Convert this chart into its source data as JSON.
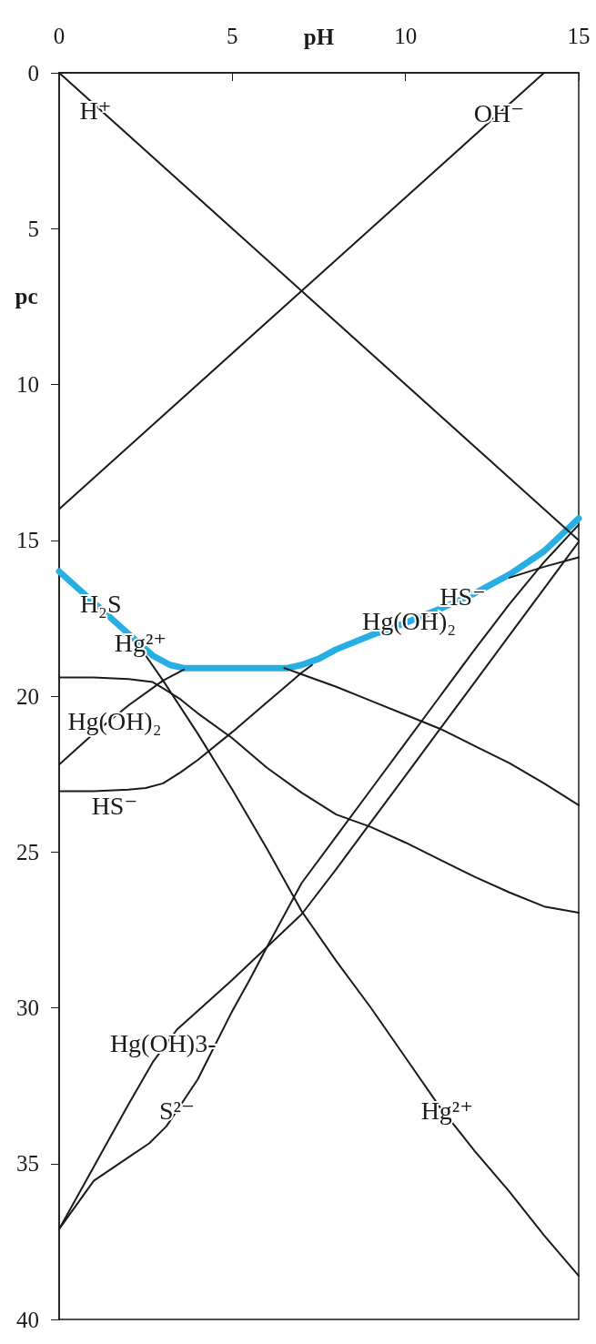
{
  "chart_data": {
    "type": "line",
    "xlabel": "pH",
    "ylabel": "pc",
    "xlim": [
      0,
      15
    ],
    "xticks": [
      0,
      5,
      10,
      15
    ],
    "ylim": [
      40,
      0
    ],
    "yticks": [
      0,
      5,
      10,
      15,
      20,
      25,
      30,
      35,
      40
    ],
    "grid": false,
    "marker": "none",
    "line_style": "solid",
    "series": [
      {
        "color": "#27aee3",
        "x": [
          0,
          1,
          2,
          2.7,
          3.2,
          3.6,
          4,
          5,
          6,
          6.6,
          7,
          7.5,
          8,
          9,
          10,
          11,
          12,
          13,
          14,
          15
        ],
        "values": [
          16.0,
          17.0,
          18.0,
          18.7,
          19.0,
          19.1,
          19.1,
          19.1,
          19.1,
          19.1,
          19.0,
          18.8,
          18.5,
          18.05,
          17.65,
          17.2,
          16.7,
          16.1,
          15.35,
          14.3
        ]
      },
      {
        "color": "#1a1a1a",
        "x": [
          0,
          15
        ],
        "values": [
          0,
          15
        ]
      },
      {
        "color": "#1a1a1a",
        "x": [
          0,
          14
        ],
        "values": [
          14,
          0
        ]
      },
      {
        "color": "#1a1a1a",
        "x": [
          2.5,
          3,
          4,
          5,
          6,
          7,
          8,
          9,
          10,
          11,
          12,
          13,
          14,
          15
        ],
        "values": [
          18.7,
          19.5,
          21.2,
          23.0,
          24.9,
          26.9,
          28.5,
          30.0,
          31.6,
          33.2,
          34.6,
          35.9,
          37.3,
          38.6
        ]
      },
      {
        "color": "#1a1a1a",
        "x": [
          0,
          1,
          2,
          2.7,
          3,
          3.5,
          4,
          5,
          6,
          7,
          8,
          9,
          10,
          11,
          12,
          13,
          14,
          15
        ],
        "values": [
          19.4,
          19.4,
          19.45,
          19.55,
          19.75,
          20.1,
          20.55,
          21.35,
          22.3,
          23.1,
          23.8,
          24.2,
          24.7,
          25.25,
          25.8,
          26.3,
          26.75,
          26.95
        ]
      },
      {
        "color": "#1a1a1a",
        "x": [
          6.5,
          7,
          8,
          9,
          10,
          11,
          12,
          13,
          14,
          15
        ],
        "values": [
          19.1,
          19.3,
          19.7,
          20.15,
          20.6,
          21.05,
          21.6,
          22.15,
          22.8,
          23.5
        ]
      },
      {
        "color": "#1a1a1a",
        "x": [
          0,
          1,
          2,
          3,
          3.6
        ],
        "values": [
          22.2,
          21.2,
          20.3,
          19.5,
          19.15
        ]
      },
      {
        "color": "#1a1a1a",
        "x": [
          0,
          1,
          2,
          2.5,
          3,
          3.5,
          4,
          5,
          6,
          7,
          7.3,
          10,
          13,
          14,
          15
        ],
        "values": [
          23.05,
          23.05,
          23.0,
          22.95,
          22.8,
          22.45,
          22.05,
          21.15,
          20.2,
          19.25,
          19.0,
          null,
          16.2,
          15.85,
          15.55
        ]
      },
      {
        "color": "#1a1a1a",
        "x": [
          0,
          1,
          2,
          2.7,
          3.4,
          4.3,
          5,
          6,
          7,
          8,
          9,
          10,
          11,
          12,
          13,
          14,
          15
        ],
        "values": [
          37.1,
          35.1,
          33.1,
          31.75,
          30.7,
          29.8,
          29.1,
          28.05,
          27.0,
          25.55,
          24.05,
          22.55,
          21.05,
          19.55,
          18.05,
          16.55,
          15.05
        ]
      },
      {
        "color": "#1a1a1a",
        "x": [
          0,
          1,
          2,
          2.6,
          3.1,
          4,
          5,
          5.5,
          6,
          7,
          8,
          9,
          10,
          11,
          12,
          13,
          14,
          15
        ],
        "values": [
          37.1,
          35.55,
          34.8,
          34.35,
          33.8,
          32.3,
          30.1,
          29.1,
          28.05,
          26.0,
          24.5,
          23.0,
          21.5,
          20.0,
          18.5,
          17.05,
          15.7,
          14.5
        ]
      }
    ],
    "annotations": [
      {
        "text": "H⁺",
        "x": 1.05,
        "y": 1.2
      },
      {
        "text": "OH⁻",
        "x": 12.7,
        "y": 1.3
      },
      {
        "text": "H₂S",
        "x": 1.2,
        "y": 17.05
      },
      {
        "text": "Hg²⁺",
        "x": 2.35,
        "y": 18.3
      },
      {
        "text": "Hg(OH)₂",
        "x": 1.6,
        "y": 20.8
      },
      {
        "text": "HS⁻",
        "x": 1.6,
        "y": 23.15
      },
      {
        "text": "Hg(OH)₂",
        "x": 10.1,
        "y": 17.6
      },
      {
        "text": "HS⁻",
        "x": 11.65,
        "y": 16.8
      },
      {
        "text": "Hg(OH)3-",
        "x": 3.0,
        "y": 31.15
      },
      {
        "text": "S²⁻",
        "x": 3.4,
        "y": 33.3
      },
      {
        "text": "Hg²⁺",
        "x": 11.2,
        "y": 33.3
      }
    ]
  }
}
